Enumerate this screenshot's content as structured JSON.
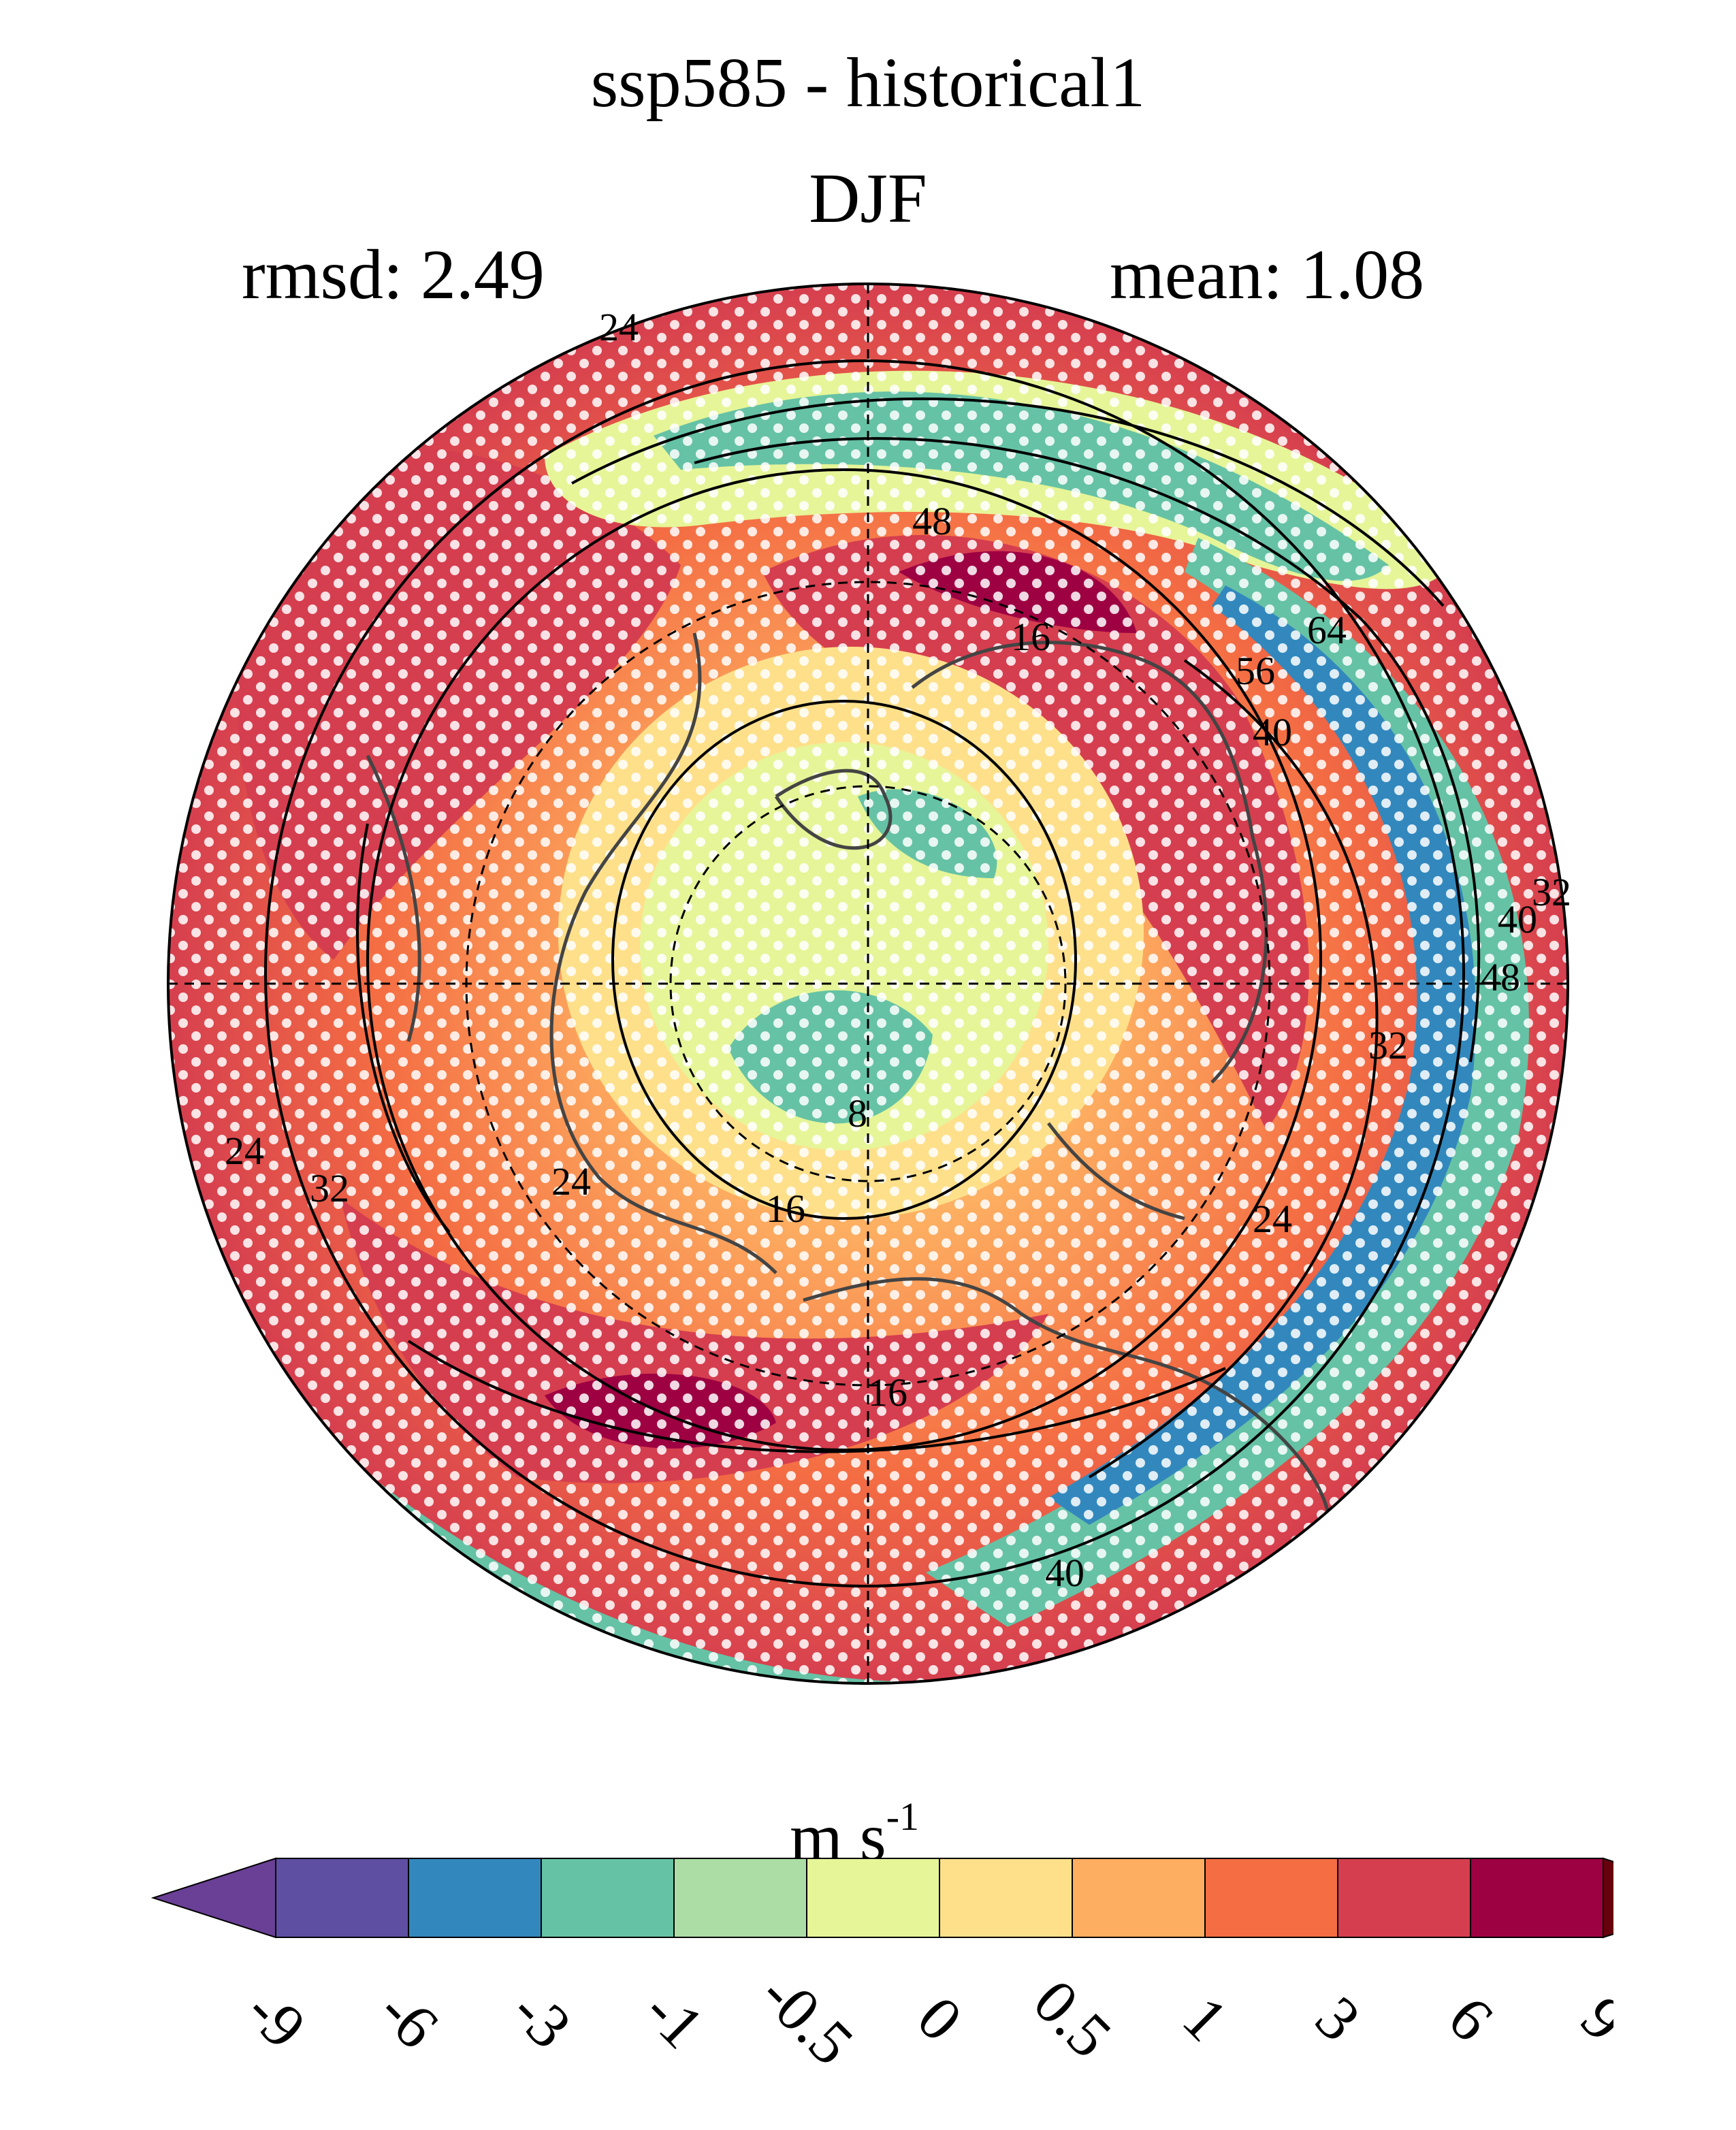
{
  "chart_data": {
    "type": "heatmap",
    "title": "ssp585 - historical1",
    "subtitle": "DJF",
    "stats": {
      "rmsd": "rmsd: 2.49",
      "mean": "mean: 1.08"
    },
    "projection": "north polar stereographic",
    "units_base": "m s",
    "units_exp": "-1",
    "colorbar": {
      "labels": [
        "-9",
        "-6",
        "-3",
        "-1",
        "-0.5",
        "0",
        "0.5",
        "1",
        "3",
        "6",
        "9"
      ],
      "colors": [
        "#5e4fa2",
        "#3288bd",
        "#66c2a5",
        "#abdda4",
        "#e6f598",
        "#fee08b",
        "#fdae61",
        "#f46d43",
        "#d53e4f",
        "#9e0142"
      ],
      "under_color": "#6a3f96",
      "over_color": "#67000d"
    },
    "contour_labels": [
      "24",
      "48",
      "16",
      "56",
      "64",
      "40",
      "32",
      "40",
      "48",
      "32",
      "8",
      "16",
      "24",
      "24",
      "32",
      "24",
      "16",
      "40"
    ]
  }
}
